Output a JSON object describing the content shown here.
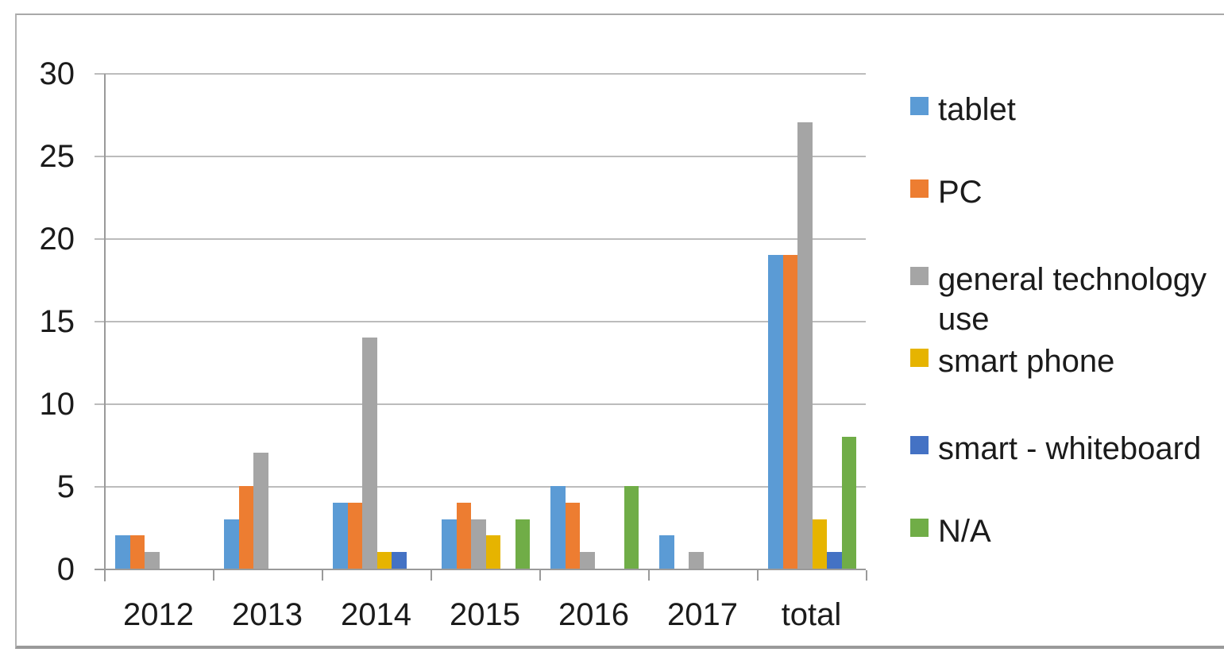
{
  "chart_data": {
    "type": "bar",
    "title": "",
    "xlabel": "",
    "ylabel": "",
    "categories": [
      "2012",
      "2013",
      "2014",
      "2015",
      "2016",
      "2017",
      "total"
    ],
    "series": [
      {
        "name": "tablet",
        "color": "#5B9BD5",
        "values": [
          2,
          3,
          4,
          3,
          5,
          2,
          19
        ]
      },
      {
        "name": "PC",
        "color": "#ED7D31",
        "values": [
          2,
          5,
          4,
          4,
          4,
          0,
          19
        ]
      },
      {
        "name": "general technology use",
        "color": "#A5A5A5",
        "values": [
          1,
          7,
          14,
          3,
          1,
          1,
          27
        ]
      },
      {
        "name": "smart phone",
        "color": "#E6B400",
        "values": [
          0,
          0,
          1,
          2,
          0,
          0,
          3
        ]
      },
      {
        "name": "smart - whiteboard",
        "color": "#4472C4",
        "values": [
          0,
          0,
          1,
          0,
          0,
          0,
          1
        ]
      },
      {
        "name": "N/A",
        "color": "#70AD47",
        "values": [
          0,
          0,
          0,
          3,
          5,
          0,
          8
        ]
      }
    ],
    "y_ticks": [
      0,
      5,
      10,
      15,
      20,
      25,
      30
    ],
    "ylim": [
      0,
      30
    ],
    "grid": true,
    "legend_position": "right",
    "legend_labels": [
      "tablet",
      "PC",
      "general technology use",
      "smart phone",
      "smart - whiteboard",
      "N/A"
    ]
  },
  "colors": {
    "gridline": "#bcbcbc",
    "axis": "#9a9a9a",
    "frame": "#a9a9a9",
    "text": "#1b1b1b",
    "background": "#ffffff"
  }
}
